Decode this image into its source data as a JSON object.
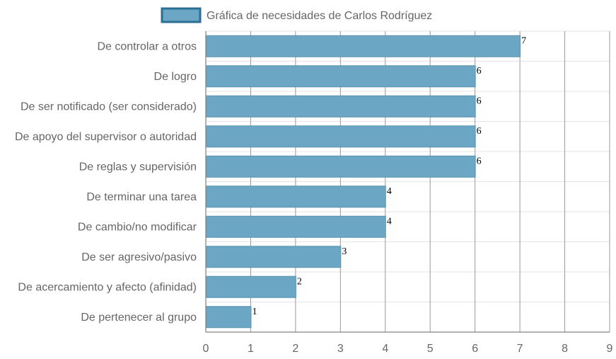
{
  "chart_data": {
    "type": "bar",
    "orientation": "horizontal",
    "categories": [
      "De controlar a otros",
      "De logro",
      "De ser notificado (ser considerado)",
      "De apoyo del supervisor o autoridad",
      "De reglas y supervisión",
      "De terminar una tarea",
      "De cambio/no modificar",
      "De ser agresivo/pasivo",
      "De acercamiento y afecto (afinidad)",
      "De pertenecer al grupo"
    ],
    "series": [
      {
        "name": "Gráfica de necesidades de Carlos Rodríguez",
        "values": [
          7,
          6,
          6,
          6,
          6,
          4,
          4,
          3,
          2,
          1
        ]
      }
    ],
    "xlim": [
      0,
      9
    ],
    "xticks": [
      "0",
      "1",
      "2",
      "3",
      "4",
      "5",
      "6",
      "7",
      "8",
      "9"
    ],
    "grid": true,
    "legend_position": "top",
    "data_labels": true
  },
  "colors": {
    "bar_fill": "#6ba6c4",
    "bar_stroke": "#5b93b0",
    "legend_fill": "#6ba6c4",
    "legend_stroke": "#2b6f93",
    "grid": "#e4e4e4",
    "vertical_grid": "#999999"
  }
}
